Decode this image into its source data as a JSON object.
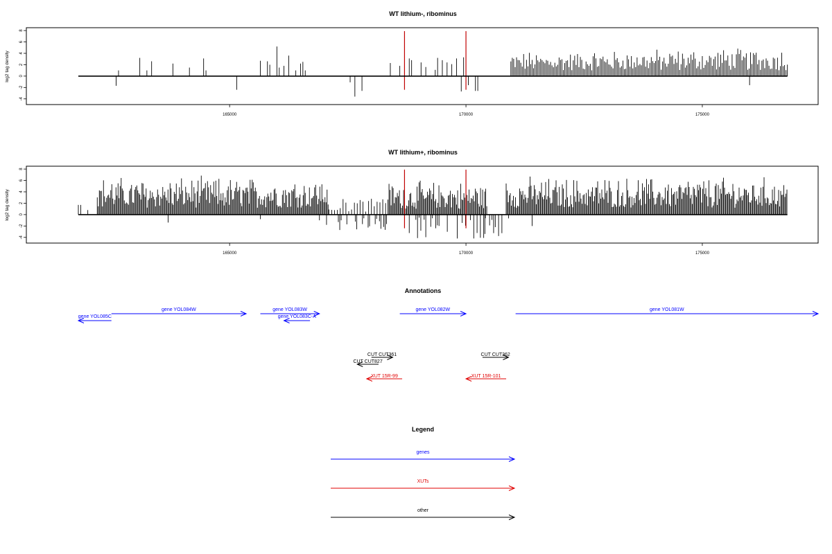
{
  "colors": {
    "genes": "#0000ff",
    "xuts": "#e00000",
    "other": "#000000",
    "highlight": "#c00000"
  },
  "chart_data": [
    {
      "type": "bar",
      "title": "WT lithium-, ribominus",
      "ylabel": "log2 tag density",
      "xlim": [
        160700,
        177450
      ],
      "ylim": [
        -5,
        8.5
      ],
      "yticks": [
        -4,
        -2,
        0,
        2,
        4,
        6,
        8
      ],
      "xticks": [
        165000,
        170000,
        175000
      ],
      "xrange": [
        161800,
        176800
      ],
      "highlights": [
        168700,
        170000
      ],
      "density": "sparse",
      "values": [
        [
          162600,
          -1.7
        ],
        [
          162650,
          1.0
        ],
        [
          163100,
          3.2
        ],
        [
          163250,
          1.0
        ],
        [
          163350,
          2.6
        ],
        [
          163800,
          2.2
        ],
        [
          164150,
          1.5
        ],
        [
          164450,
          3.1
        ],
        [
          164500,
          1.0
        ],
        [
          165150,
          -2.4
        ],
        [
          165650,
          2.7
        ],
        [
          165800,
          2.6
        ],
        [
          165850,
          2.0
        ],
        [
          166000,
          5.2
        ],
        [
          166050,
          1.5
        ],
        [
          166150,
          1.8
        ],
        [
          166250,
          3.6
        ],
        [
          166400,
          1.0
        ],
        [
          166500,
          2.2
        ],
        [
          166550,
          2.5
        ],
        [
          166600,
          1.0
        ],
        [
          167550,
          -1.1
        ],
        [
          167650,
          -3.6
        ],
        [
          167800,
          -2.6
        ],
        [
          168400,
          2.3
        ],
        [
          168600,
          1.8
        ],
        [
          168700,
          2.1
        ],
        [
          168800,
          3.1
        ],
        [
          168850,
          2.8
        ],
        [
          169050,
          2.4
        ],
        [
          169150,
          1.6
        ],
        [
          169350,
          1.1
        ],
        [
          169400,
          3.2
        ],
        [
          169500,
          2.8
        ],
        [
          169600,
          2.4
        ],
        [
          169700,
          2.1
        ],
        [
          169800,
          3.1
        ],
        [
          169900,
          -2.7
        ],
        [
          169950,
          3.3
        ],
        [
          170050,
          -1.6
        ],
        [
          170200,
          -2.6
        ],
        [
          170250,
          -2.6
        ]
      ],
      "dense_segments": [
        {
          "from": 170950,
          "to": 176800,
          "step": 30,
          "min": 1.0,
          "max": 5.0,
          "ramp": 0.25
        }
      ],
      "extra_negatives": [
        [
          176000,
          -1.6
        ]
      ]
    },
    {
      "type": "bar",
      "title": "WT lithium+, ribominus",
      "ylabel": "log2 tag density",
      "xlim": [
        160700,
        177450
      ],
      "ylim": [
        -5,
        8.5
      ],
      "yticks": [
        -4,
        -2,
        0,
        2,
        4,
        6,
        8
      ],
      "xticks": [
        165000,
        170000,
        175000
      ],
      "xrange": [
        161800,
        176800
      ],
      "highlights": [
        168700,
        170000
      ],
      "density": "dense",
      "values": [
        [
          161800,
          1.7
        ],
        [
          161850,
          1.7
        ],
        [
          162000,
          0.8
        ],
        [
          163700,
          -1.4
        ],
        [
          165650,
          -0.8
        ],
        [
          166900,
          -1.0
        ],
        [
          167050,
          -1.8
        ],
        [
          170400,
          -3.4
        ],
        [
          170500,
          -1.9
        ],
        [
          171400,
          -2.0
        ]
      ],
      "dense_segments": [
        {
          "from": 162200,
          "to": 167100,
          "step": 22,
          "min": 1.2,
          "max": 7.0,
          "ramp": 0
        },
        {
          "from": 168350,
          "to": 170450,
          "step": 22,
          "min": 1.0,
          "max": 6.2,
          "ramp": 0
        },
        {
          "from": 170850,
          "to": 176800,
          "step": 22,
          "min": 1.2,
          "max": 7.0,
          "ramp": 0
        }
      ],
      "negative_segments": [
        {
          "from": 167300,
          "to": 168400,
          "step": 30,
          "min": -3.0,
          "max": -0.6
        },
        {
          "from": 168800,
          "to": 170900,
          "step": 35,
          "min": -4.3,
          "max": -0.5
        }
      ],
      "positive_scatter": [
        {
          "from": 167100,
          "to": 168300,
          "step": 60,
          "min": 0.5,
          "max": 2.8
        }
      ]
    }
  ],
  "annotations": {
    "title": "Annotations",
    "genes": [
      {
        "label": "gene YOL085C",
        "start": 161800,
        "end": 162500,
        "strand": "-"
      },
      {
        "label": "gene YOL084W",
        "start": 162500,
        "end": 165350,
        "strand": "+"
      },
      {
        "label": "gene YOL083W",
        "start": 165650,
        "end": 166900,
        "strand": "+"
      },
      {
        "label": "gene YOL083C-A",
        "start": 166150,
        "end": 166700,
        "strand": "-"
      },
      {
        "label": "gene YOL082W",
        "start": 168600,
        "end": 170000,
        "strand": "+"
      },
      {
        "label": "gene YOL081W",
        "start": 171050,
        "end": 177450,
        "strand": "+"
      }
    ],
    "cuts": [
      {
        "label": "CUT CUT361",
        "start": 168000,
        "end": 168450,
        "strand": "+"
      },
      {
        "label": "CUT CUT827",
        "start": 167700,
        "end": 168150,
        "strand": "-"
      },
      {
        "label": "CUT CUT362",
        "start": 170350,
        "end": 170900,
        "strand": "+"
      }
    ],
    "xuts": [
      {
        "label": "XUT 15R-99",
        "start": 167900,
        "end": 168650,
        "strand": "-"
      },
      {
        "label": "XUT 15R-101",
        "start": 170000,
        "end": 170850,
        "strand": "-"
      }
    ]
  },
  "legend": {
    "title": "Legend",
    "items": [
      {
        "label": "genes",
        "color": "#0000ff"
      },
      {
        "label": "XUTs",
        "color": "#e00000"
      },
      {
        "label": "other",
        "color": "#000000"
      }
    ]
  }
}
